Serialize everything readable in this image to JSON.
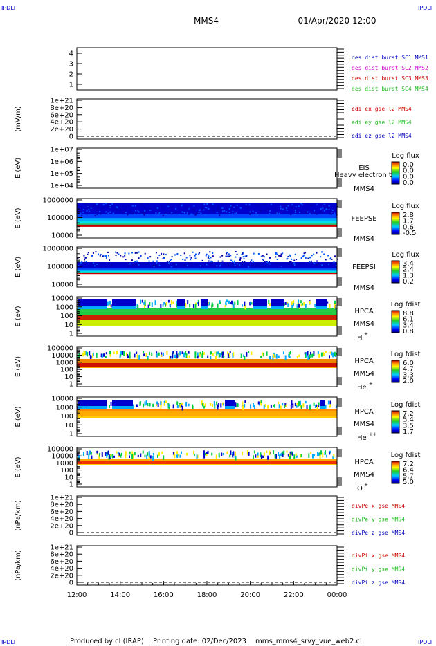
{
  "header": {
    "corner_tl": "IPDLI",
    "corner_tr": "IPDLI",
    "corner_bl": "IPDLI",
    "corner_br": "IPDLI",
    "spacecraft": "MMS4",
    "datetime": "01/Apr/2020 12:00"
  },
  "footer": {
    "produced_by": "Produced by cl (IRAP)",
    "printing_date": "Printing date: 02/Dec/2023",
    "script": "mms_mms4_srvy_vue_web2.cl"
  },
  "colors": {
    "red": "#cc0000",
    "green": "#22bb22",
    "blue": "#0000bb",
    "magenta": "#cc00cc"
  },
  "chart_data": {
    "type": "heatmap",
    "x_ticks": [
      "12:00",
      "14:00",
      "16:00",
      "18:00",
      "20:00",
      "22:00",
      "00:00"
    ],
    "panels": [
      {
        "id": "burst",
        "type": "line",
        "ylabel": "",
        "y_ticks": [
          "4",
          "3",
          "2",
          "1"
        ],
        "ylim": [
          0.5,
          4.5
        ],
        "legend": [
          {
            "text": "des dist burst SC1 MMS1",
            "color": "#0000bb"
          },
          {
            "text": "des dist burst SC2 MMS2",
            "color": "#cc00cc"
          },
          {
            "text": "des dist burst SC3 MMS3",
            "color": "#cc0000"
          },
          {
            "text": "des dist burst SC4 MMS4",
            "color": "#22bb22"
          }
        ]
      },
      {
        "id": "edi",
        "type": "line",
        "ylabel": "(mV/m)",
        "y_ticks": [
          "1e+21",
          "8e+20",
          "6e+20",
          "4e+20",
          "2e+20",
          "0"
        ],
        "legend": [
          {
            "text": "edi ex gse l2 MMS4",
            "color": "#cc0000"
          },
          {
            "text": "edi ey gse l2 MMS4",
            "color": "#22bb22"
          },
          {
            "text": "edi ez gse l2 MMS4",
            "color": "#0000bb"
          }
        ]
      },
      {
        "id": "eis",
        "type": "heatmap",
        "ylabel": "E (eV)",
        "y_ticks": [
          "1e+07",
          "1e+06",
          "1e+05",
          "1e+04"
        ],
        "instrument": "EIS",
        "species": "MMS4",
        "overlay": "Heavy electron to",
        "cbar_title": "Log flux",
        "cbar_ticks": [
          "0.0",
          "0.0",
          "0.0",
          "0.0"
        ]
      },
      {
        "id": "feepse",
        "type": "heatmap",
        "ylabel": "E (eV)",
        "y_ticks": [
          "1000000",
          "100000",
          "10000"
        ],
        "instrument": "FEEPSE",
        "species": "MMS4",
        "cbar_title": "Log flux",
        "cbar_ticks": [
          "2.8",
          "1.7",
          "0.6",
          "-0.5"
        ]
      },
      {
        "id": "feepsi",
        "type": "heatmap",
        "ylabel": "E (eV)",
        "y_ticks": [
          "1000000",
          "100000",
          "10000"
        ],
        "instrument": "FEEPSI",
        "species": "MMS4",
        "cbar_title": "Log flux",
        "cbar_ticks": [
          "3.4",
          "2.4",
          "1.3",
          "0.2"
        ]
      },
      {
        "id": "hpca_h",
        "type": "heatmap",
        "ylabel": "E (eV)",
        "y_ticks": [
          "10000",
          "1000",
          "100",
          "10",
          "1"
        ],
        "instrument": "HPCA",
        "species": "MMS4",
        "ion": "H",
        "ion_sup": "+",
        "cbar_title": "Log fdist",
        "cbar_ticks": [
          "8.8",
          "6.1",
          "3.4",
          "0.8"
        ]
      },
      {
        "id": "hpca_he1",
        "type": "heatmap",
        "ylabel": "E (eV)",
        "y_ticks": [
          "100000",
          "10000",
          "1000",
          "100",
          "10",
          "1"
        ],
        "instrument": "HPCA",
        "species": "MMS4",
        "ion": "He",
        "ion_sup": "+",
        "cbar_title": "Log fdist",
        "cbar_ticks": [
          "6.0",
          "4.7",
          "3.3",
          "2.0"
        ]
      },
      {
        "id": "hpca_he2",
        "type": "heatmap",
        "ylabel": "E (eV)",
        "y_ticks": [
          "10000",
          "1000",
          "100",
          "10",
          "1"
        ],
        "instrument": "HPCA",
        "species": "MMS4",
        "ion": "He",
        "ion_sup": "++",
        "cbar_title": "Log fdist",
        "cbar_ticks": [
          "7.2",
          "5.4",
          "3.5",
          "1.7"
        ]
      },
      {
        "id": "hpca_o",
        "type": "heatmap",
        "ylabel": "E (eV)",
        "y_ticks": [
          "100000",
          "10000",
          "1000",
          "100",
          "10",
          "1"
        ],
        "instrument": "HPCA",
        "species": "MMS4",
        "ion": "O",
        "ion_sup": "+",
        "cbar_title": "Log fdist",
        "cbar_ticks": [
          "7.2",
          "6.4",
          "5.7",
          "5.0"
        ]
      },
      {
        "id": "divpe",
        "type": "line",
        "ylabel": "(nPa/km)",
        "y_ticks": [
          "1e+21",
          "8e+20",
          "6e+20",
          "4e+20",
          "2e+20",
          "0"
        ],
        "legend": [
          {
            "text": "divPe x gse MMS4",
            "color": "#cc0000"
          },
          {
            "text": "divPe y gse MMS4",
            "color": "#22bb22"
          },
          {
            "text": "divPe z gse MMS4",
            "color": "#0000bb"
          }
        ]
      },
      {
        "id": "divpi",
        "type": "line",
        "ylabel": "(nPa/km)",
        "y_ticks": [
          "1e+21",
          "8e+20",
          "6e+20",
          "4e+20",
          "2e+20",
          "0"
        ],
        "legend": [
          {
            "text": "divPi x gse MMS4",
            "color": "#cc0000"
          },
          {
            "text": "divPi y gse MMS4",
            "color": "#22bb22"
          },
          {
            "text": "divPi z gse MMS4",
            "color": "#0000bb"
          }
        ]
      }
    ]
  }
}
